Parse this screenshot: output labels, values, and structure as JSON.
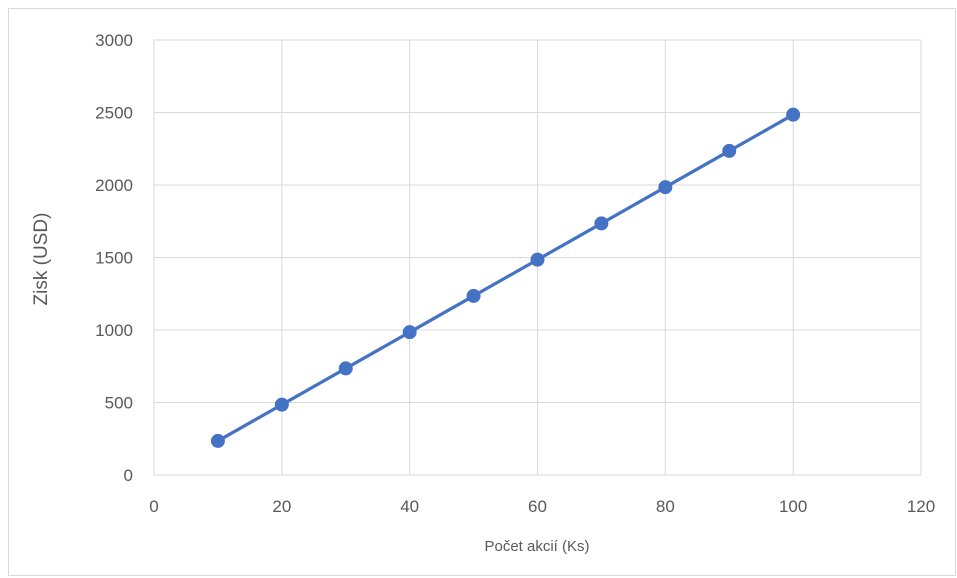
{
  "chart_data": {
    "type": "scatter",
    "title": "",
    "xlabel": "Počet akcií (Ks)",
    "ylabel": "Zisk (USD)",
    "xlim": [
      0,
      120
    ],
    "ylim": [
      0,
      3000
    ],
    "x_ticks": [
      0,
      20,
      40,
      60,
      80,
      100,
      120
    ],
    "y_ticks": [
      0,
      500,
      1000,
      1500,
      2000,
      2500,
      3000
    ],
    "x_tick_labels": [
      "0",
      "20",
      "40",
      "60",
      "80",
      "100",
      "120"
    ],
    "y_tick_labels": [
      "0",
      "500",
      "1000",
      "1500",
      "2000",
      "2500",
      "3000"
    ],
    "grid": true,
    "legend": "none",
    "series": [
      {
        "color": "#4472c4",
        "x": [
          10,
          20,
          30,
          40,
          50,
          60,
          70,
          80,
          90,
          100
        ],
        "y": [
          235,
          485,
          735,
          985,
          1235,
          1485,
          1735,
          1985,
          2235,
          2485
        ],
        "markers": true,
        "line": true
      }
    ]
  }
}
